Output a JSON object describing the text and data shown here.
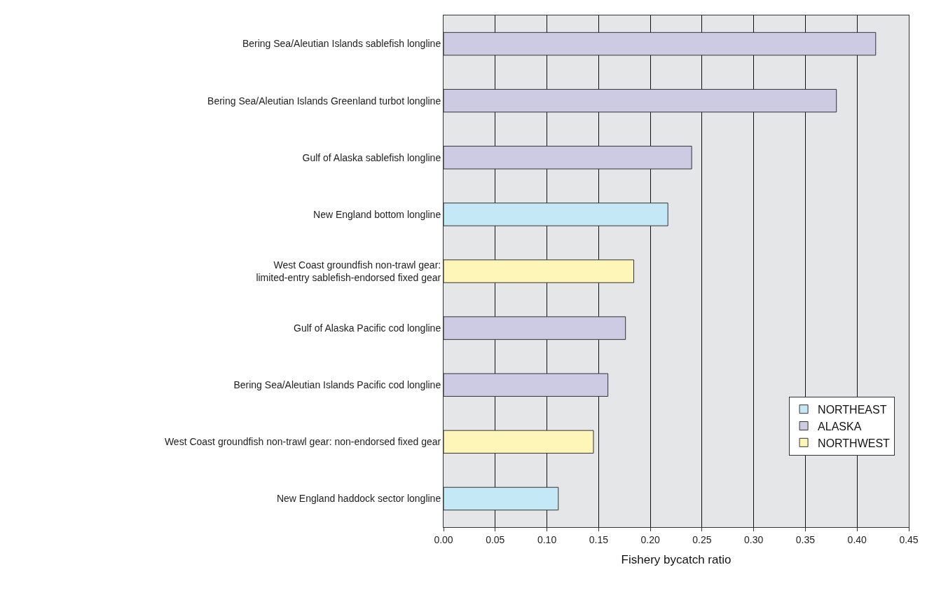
{
  "chart_data": {
    "type": "bar",
    "orientation": "horizontal",
    "stacked": true,
    "xlabel": "Fishery bycatch ratio",
    "categories": [
      "Bering Sea/Aleutian Islands sablefish longline",
      "Bering Sea/Aleutian Islands Greenland turbot longline",
      "Gulf of Alaska sablefish longline",
      "New England bottom longline",
      "West Coast groundfish non-trawl gear:\nlimited-entry sablefish-endorsed fixed gear",
      "Gulf of Alaska Pacific cod longline",
      "Bering Sea/Aleutian Islands Pacific cod longline",
      "West Coast groundfish non-trawl gear: non-endorsed fixed gear",
      "New England haddock sector longline"
    ],
    "series": [
      {
        "name": "NORTHEAST",
        "color": "#c5e8f7",
        "values": [
          null,
          null,
          null,
          0.217,
          null,
          null,
          null,
          null,
          0.111
        ]
      },
      {
        "name": "ALASKA",
        "color": "#cdcbe4",
        "values": [
          0.418,
          0.38,
          0.24,
          null,
          null,
          0.176,
          0.159,
          null,
          null
        ]
      },
      {
        "name": "NORTHWEST",
        "color": "#fdf6b8",
        "values": [
          null,
          null,
          null,
          null,
          0.184,
          null,
          null,
          0.145,
          null
        ]
      }
    ],
    "xlim": [
      0,
      0.45
    ],
    "xticks": [
      {
        "value": 0,
        "label": "0.00"
      },
      {
        "value": 0.05,
        "label": "0.05"
      },
      {
        "value": 0.1,
        "label": "0.10"
      },
      {
        "value": 0.15,
        "label": "0.15"
      },
      {
        "value": 0.2,
        "label": "0.20"
      },
      {
        "value": 0.25,
        "label": "0.25"
      },
      {
        "value": 0.3,
        "label": "0.30"
      },
      {
        "value": 0.35,
        "label": "0.35"
      },
      {
        "value": 0.4,
        "label": "0.40"
      },
      {
        "value": 0.45,
        "label": "0.45"
      }
    ],
    "grid": "x",
    "legend": "bottom right"
  }
}
